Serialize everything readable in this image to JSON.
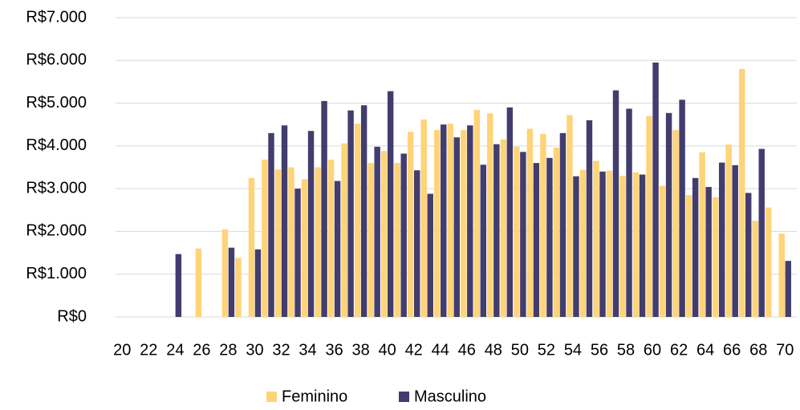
{
  "chart_data": {
    "type": "bar",
    "categories": [
      20,
      null,
      22,
      null,
      24,
      null,
      26,
      null,
      28,
      null,
      30,
      null,
      32,
      null,
      34,
      null,
      36,
      null,
      38,
      null,
      40,
      null,
      42,
      null,
      44,
      null,
      46,
      null,
      48,
      null,
      50,
      null,
      52,
      null,
      54,
      null,
      56,
      null,
      58,
      null,
      60,
      null,
      62,
      null,
      64,
      null,
      66,
      null,
      68,
      null,
      70
    ],
    "series": [
      {
        "name": "Feminino",
        "color": "#ffd378",
        "values": [
          null,
          null,
          null,
          null,
          null,
          null,
          1600,
          null,
          2050,
          1380,
          3250,
          3680,
          3450,
          3500,
          3220,
          3500,
          3680,
          4060,
          4520,
          3600,
          3880,
          3600,
          4330,
          4620,
          4370,
          4520,
          4370,
          4840,
          4760,
          4150,
          3980,
          4400,
          4280,
          3960,
          4720,
          3440,
          3650,
          3420,
          3300,
          3380,
          4700,
          3070,
          4370,
          2850,
          3850,
          2800,
          4030,
          5800,
          2250,
          2560,
          1950
        ]
      },
      {
        "name": "Masculino",
        "color": "#423d6e",
        "values": [
          null,
          null,
          null,
          null,
          1470,
          null,
          null,
          null,
          1620,
          null,
          1580,
          4300,
          4480,
          3000,
          4350,
          5050,
          3180,
          4830,
          4950,
          3980,
          5280,
          3820,
          3430,
          2880,
          4500,
          4200,
          4480,
          3560,
          4040,
          4900,
          3860,
          3600,
          3720,
          4300,
          3290,
          4600,
          3400,
          5300,
          4870,
          3330,
          5950,
          4770,
          5080,
          3250,
          3040,
          3610,
          3550,
          2900,
          3930,
          null,
          1310
        ]
      }
    ],
    "ylim": [
      0,
      7000
    ],
    "yticks": [
      {
        "value": 0,
        "label": "R$0"
      },
      {
        "value": 1000,
        "label": "R$1.000"
      },
      {
        "value": 2000,
        "label": "R$2.000"
      },
      {
        "value": 3000,
        "label": "R$3.000"
      },
      {
        "value": 4000,
        "label": "R$4.000"
      },
      {
        "value": 5000,
        "label": "R$5.000"
      },
      {
        "value": 6000,
        "label": "R$6.000"
      },
      {
        "value": 7000,
        "label": "R$7.000"
      }
    ],
    "grid": true,
    "legend": "bottom"
  }
}
